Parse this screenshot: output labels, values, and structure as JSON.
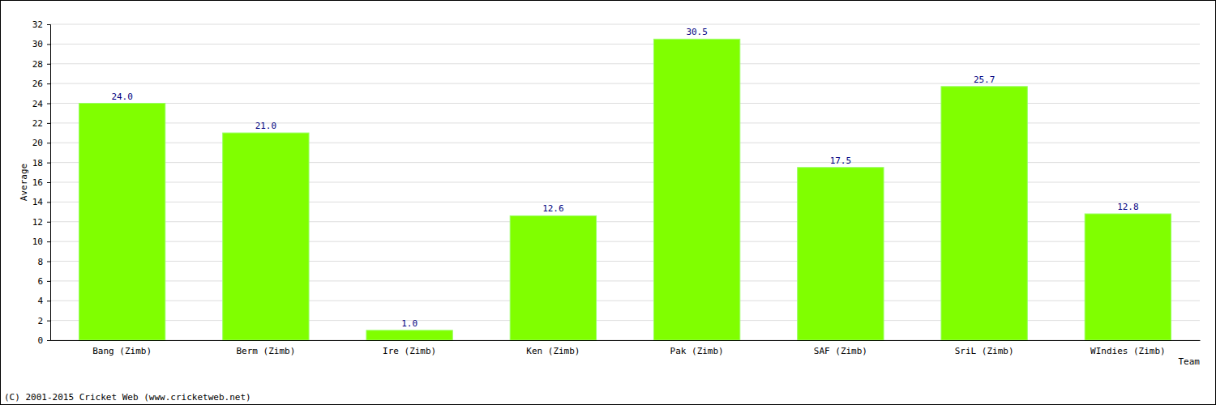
{
  "chart_data": {
    "type": "bar",
    "x_label": "Team",
    "y_label": "Average",
    "categories": [
      "Bang (Zimb)",
      "Berm (Zimb)",
      "Ire (Zimb)",
      "Ken (Zimb)",
      "Pak (Zimb)",
      "SAF (Zimb)",
      "SriL (Zimb)",
      "WIndies (Zimb)"
    ],
    "values": [
      24.0,
      21.0,
      1.0,
      12.6,
      30.5,
      17.5,
      25.7,
      12.8
    ],
    "value_labels": [
      "24.0",
      "21.0",
      "1.0",
      "12.6",
      "30.5",
      "17.5",
      "25.7",
      "12.8"
    ],
    "data_labels": true,
    "color": "#80ff00",
    "ylim": [
      0,
      32
    ],
    "yticks": [
      0,
      2,
      4,
      6,
      8,
      10,
      12,
      14,
      16,
      18,
      20,
      22,
      24,
      26,
      28,
      30,
      32
    ],
    "grid": true,
    "annotations": [
      "(C) 2001-2015 Cricket Web (www.cricketweb.net)"
    ]
  }
}
